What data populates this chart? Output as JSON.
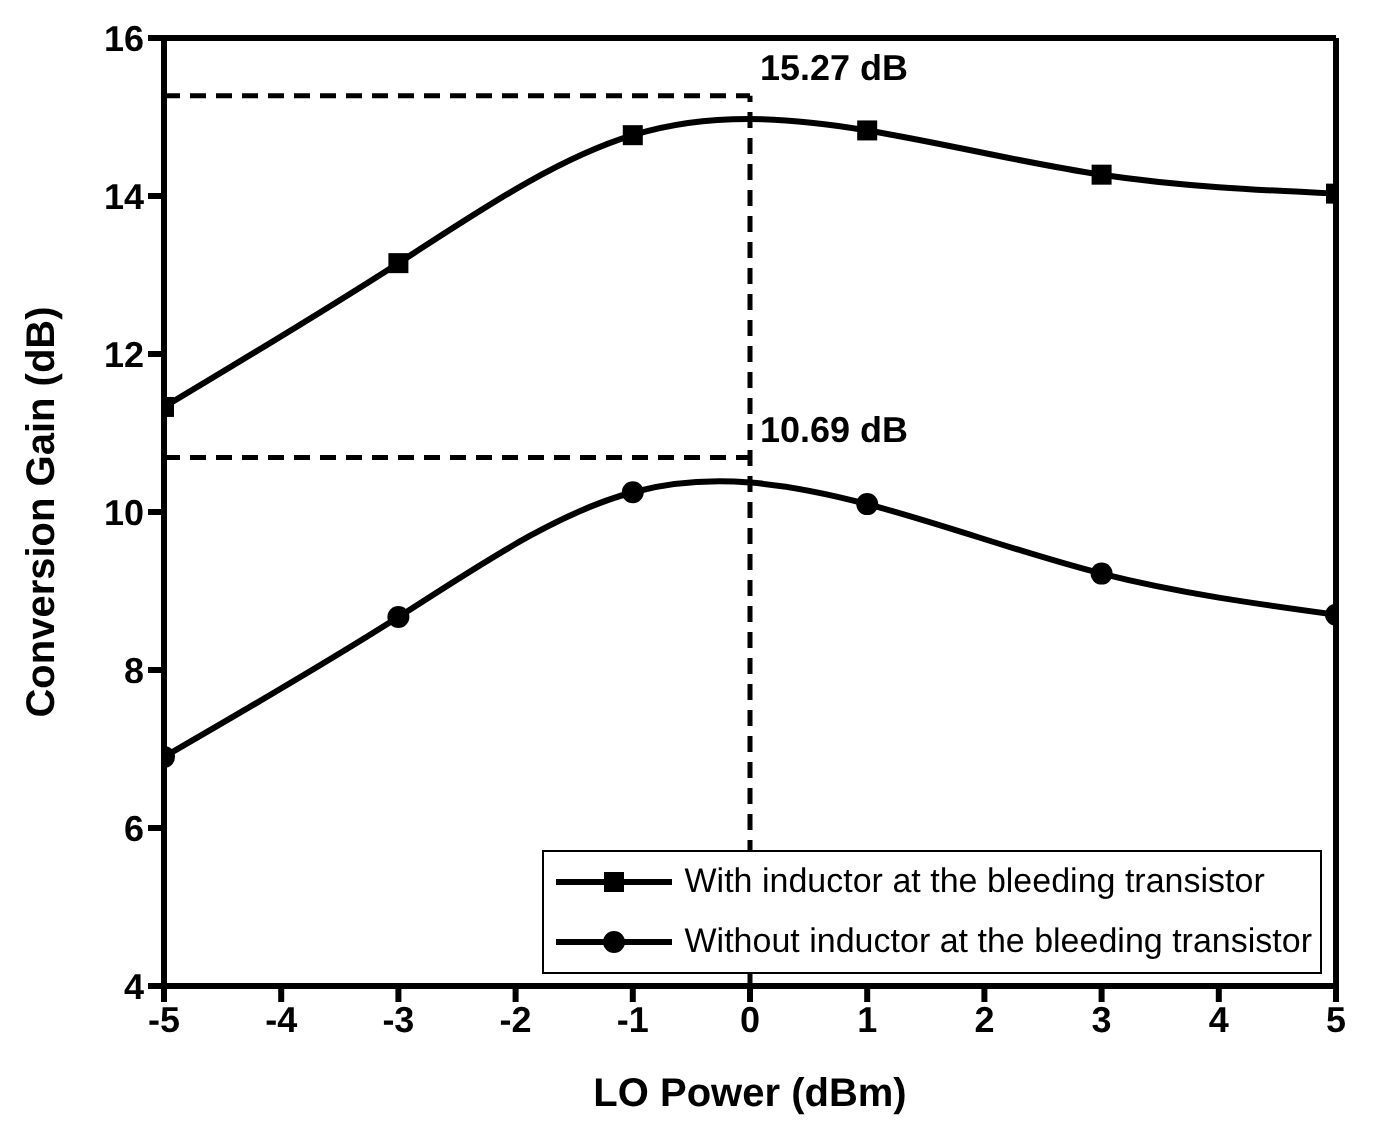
{
  "chart_data": {
    "type": "line",
    "xlabel": "LO Power (dBm)",
    "ylabel": "Conversion Gain (dB)",
    "x": [
      -5,
      -3,
      -1,
      1,
      3,
      5
    ],
    "series": [
      {
        "name": "With inductor at the bleeding transistor",
        "color": "#000000",
        "marker": "square",
        "values": [
          11.33,
          13.15,
          14.77,
          14.83,
          14.27,
          14.03
        ]
      },
      {
        "name": "Without inductor at the bleeding transistor",
        "color": "#000000",
        "marker": "circle",
        "values": [
          6.9,
          8.67,
          10.25,
          10.1,
          9.22,
          8.7
        ]
      }
    ],
    "ref_lines": [
      {
        "axis": "y",
        "value": 15.27,
        "label": "15.27 dB",
        "line_style": "dashed",
        "color": "#000000"
      },
      {
        "axis": "y",
        "value": 10.69,
        "label": "10.69 dB",
        "line_style": "dashed",
        "color": "#000000"
      },
      {
        "axis": "x",
        "value": 0,
        "line_style": "dashed",
        "color": "#000000"
      }
    ],
    "xlim": [
      -5,
      5
    ],
    "xticks": [
      -5,
      -4,
      -3,
      -2,
      -1,
      0,
      1,
      2,
      3,
      4,
      5
    ],
    "ylim": [
      4,
      16
    ],
    "yticks": [
      4,
      6,
      8,
      10,
      12,
      14,
      16
    ],
    "legend": "bottom right",
    "line_style": "solid"
  }
}
